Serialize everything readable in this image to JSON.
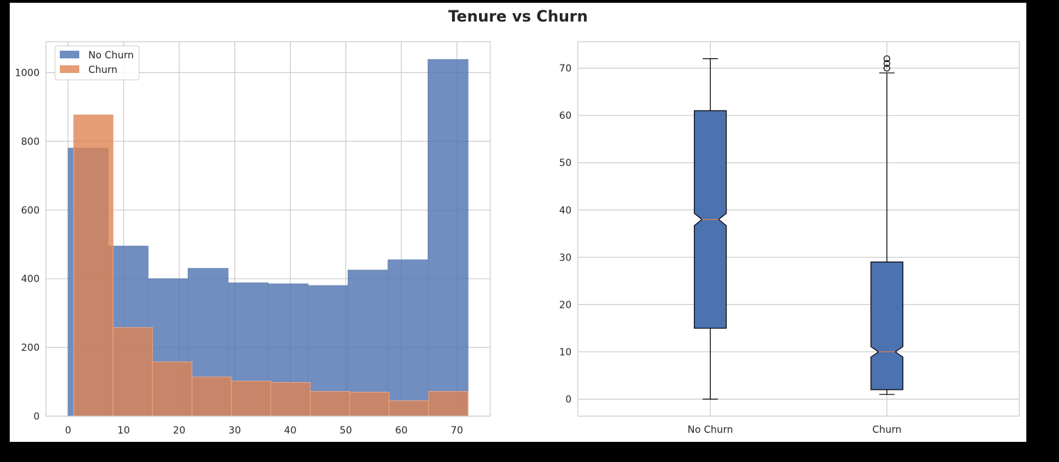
{
  "figure": {
    "title": "Tenure vs Churn"
  },
  "chart_data": [
    {
      "type": "bar",
      "subtype": "histogram-overlay",
      "title": "",
      "xlabel": "",
      "ylabel": "",
      "xlim": [
        -4,
        76
      ],
      "ylim": [
        0,
        1090
      ],
      "x_ticks": [
        0,
        10,
        20,
        30,
        40,
        50,
        60,
        70
      ],
      "y_ticks": [
        0,
        200,
        400,
        600,
        800,
        1000
      ],
      "grid": true,
      "legend": "top-left",
      "series": [
        {
          "name": "No Churn",
          "color": "#4c72b0",
          "bins": [
            {
              "start": 0,
              "end": 7.2,
              "count": 780
            },
            {
              "start": 7.2,
              "end": 14.4,
              "count": 495
            },
            {
              "start": 14.4,
              "end": 21.6,
              "count": 400
            },
            {
              "start": 21.6,
              "end": 28.8,
              "count": 430
            },
            {
              "start": 28.8,
              "end": 36,
              "count": 388
            },
            {
              "start": 36,
              "end": 43.2,
              "count": 385
            },
            {
              "start": 43.2,
              "end": 50.4,
              "count": 380
            },
            {
              "start": 50.4,
              "end": 57.6,
              "count": 425
            },
            {
              "start": 57.6,
              "end": 64.8,
              "count": 455
            },
            {
              "start": 64.8,
              "end": 72,
              "count": 1038
            }
          ]
        },
        {
          "name": "Churn",
          "color": "#dd8452",
          "bins": [
            {
              "start": 1,
              "end": 8.1,
              "count": 877
            },
            {
              "start": 8.1,
              "end": 15.2,
              "count": 258
            },
            {
              "start": 15.2,
              "end": 22.3,
              "count": 158
            },
            {
              "start": 22.3,
              "end": 29.4,
              "count": 114
            },
            {
              "start": 29.4,
              "end": 36.5,
              "count": 102
            },
            {
              "start": 36.5,
              "end": 43.6,
              "count": 98
            },
            {
              "start": 43.6,
              "end": 50.7,
              "count": 72
            },
            {
              "start": 50.7,
              "end": 57.8,
              "count": 70
            },
            {
              "start": 57.8,
              "end": 64.9,
              "count": 45
            },
            {
              "start": 64.9,
              "end": 72,
              "count": 72
            }
          ]
        }
      ]
    },
    {
      "type": "box",
      "notched": true,
      "title": "",
      "xlabel": "",
      "ylabel": "",
      "categories": [
        "No Churn",
        "Churn"
      ],
      "ylim": [
        -3.6,
        75.6
      ],
      "y_ticks": [
        0,
        10,
        20,
        30,
        40,
        50,
        60,
        70
      ],
      "grid": true,
      "box_color": "#4c72b0",
      "median_color": "#dd8452",
      "boxes": [
        {
          "name": "No Churn",
          "whisker_low": 0,
          "q1": 15,
          "median": 38,
          "q3": 61,
          "whisker_high": 72,
          "notch_low": 36.7,
          "notch_high": 39.3,
          "outliers": []
        },
        {
          "name": "Churn",
          "whisker_low": 1,
          "q1": 2,
          "median": 10,
          "q3": 29,
          "whisker_high": 69,
          "notch_low": 8.9,
          "notch_high": 11.1,
          "outliers": [
            70,
            71,
            72
          ]
        }
      ]
    }
  ]
}
